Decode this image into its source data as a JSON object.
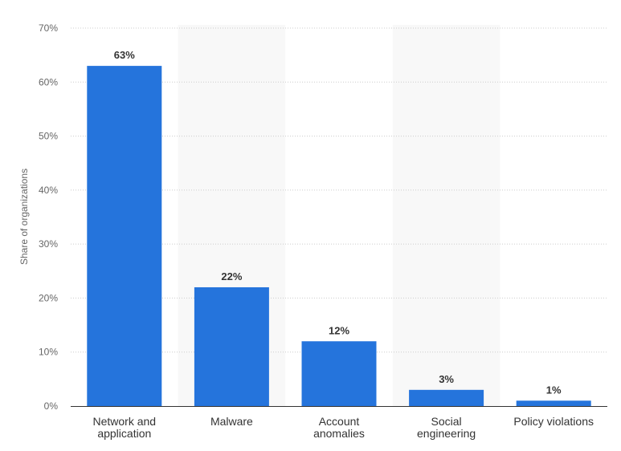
{
  "chart_data": {
    "type": "bar",
    "categories": [
      [
        "Network and",
        "application"
      ],
      [
        "Malware"
      ],
      [
        "Account",
        "anomalies"
      ],
      [
        "Social",
        "engineering"
      ],
      [
        "Policy violations"
      ]
    ],
    "values": [
      63,
      22,
      12,
      3,
      1
    ],
    "value_labels": [
      "63%",
      "22%",
      "12%",
      "3%",
      "1%"
    ],
    "ylabel": "Share of organizations",
    "ylim": [
      0,
      70
    ],
    "yticks": [
      0,
      10,
      20,
      30,
      40,
      50,
      60,
      70
    ],
    "ytick_labels": [
      "0%",
      "10%",
      "20%",
      "30%",
      "40%",
      "50%",
      "60%",
      "70%"
    ],
    "grid": true,
    "alternating_band_background": true
  },
  "colors": {
    "bar": "#2574dc",
    "band": "#f8f8f8",
    "grid": "#cccccc",
    "axis": "#333333"
  }
}
